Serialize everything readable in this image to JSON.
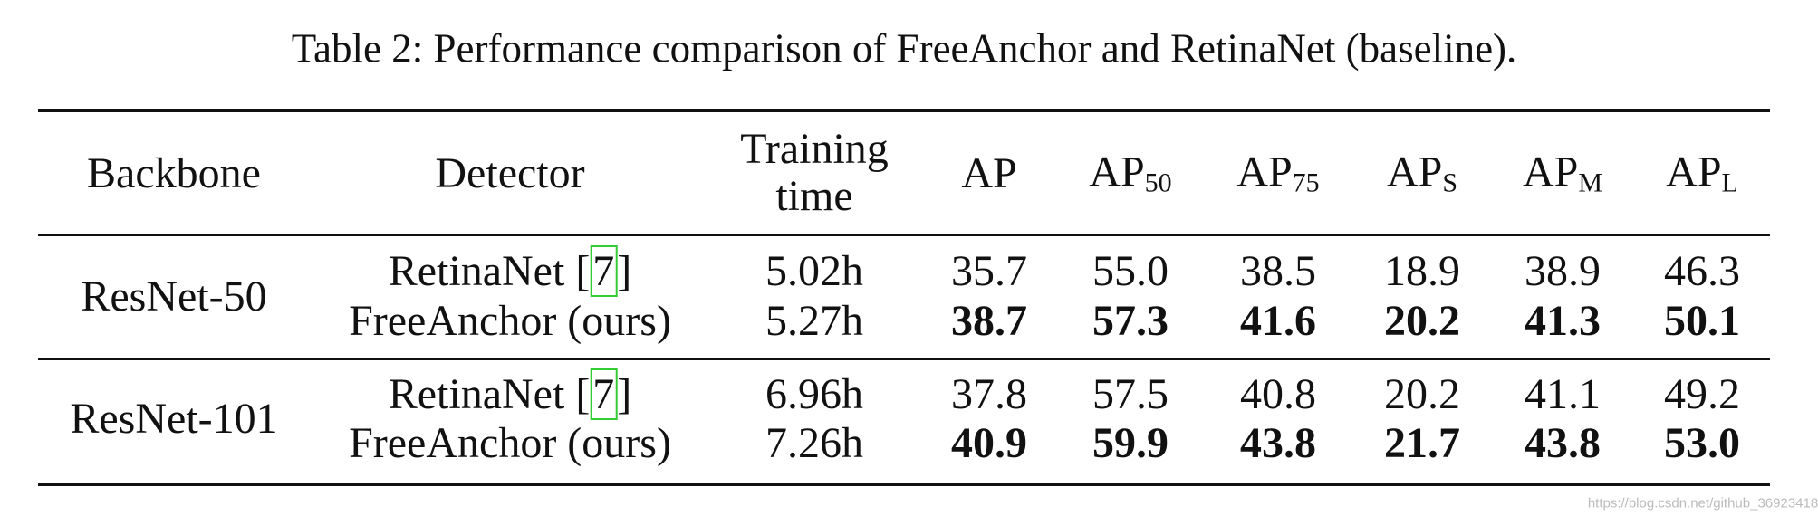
{
  "caption": "Table 2: Performance comparison of FreeAnchor and RetinaNet (baseline).",
  "table": {
    "header": [
      {
        "text": "Backbone"
      },
      {
        "text": "Detector"
      },
      {
        "lines": [
          "Training",
          "time"
        ]
      },
      {
        "text": "AP"
      },
      {
        "text": "AP",
        "sub": "50"
      },
      {
        "text": "AP",
        "sub": "75"
      },
      {
        "text": "AP",
        "sub": "S"
      },
      {
        "text": "AP",
        "sub": "M"
      },
      {
        "text": "AP",
        "sub": "L"
      }
    ],
    "groups": [
      {
        "backbone": "ResNet-50",
        "rows": [
          {
            "detector": "RetinaNet",
            "citation": [
              "[",
              "7",
              "]"
            ],
            "time": "5.02h",
            "values": [
              "35.7",
              "55.0",
              "38.5",
              "18.9",
              "38.9",
              "46.3"
            ],
            "bold": false
          },
          {
            "detector": "FreeAnchor (ours)",
            "time": "5.27h",
            "values": [
              "38.7",
              "57.3",
              "41.6",
              "20.2",
              "41.3",
              "50.1"
            ],
            "bold": true
          }
        ]
      },
      {
        "backbone": "ResNet-101",
        "rows": [
          {
            "detector": "RetinaNet",
            "citation": [
              "[",
              "7",
              "]"
            ],
            "time": "6.96h",
            "values": [
              "37.8",
              "57.5",
              "40.8",
              "20.2",
              "41.1",
              "49.2"
            ],
            "bold": false
          },
          {
            "detector": "FreeAnchor (ours)",
            "time": "7.26h",
            "values": [
              "40.9",
              "59.9",
              "43.8",
              "21.7",
              "43.8",
              "53.0"
            ],
            "bold": true
          }
        ]
      }
    ]
  },
  "watermark": "https://blog.csdn.net/github_36923418"
}
